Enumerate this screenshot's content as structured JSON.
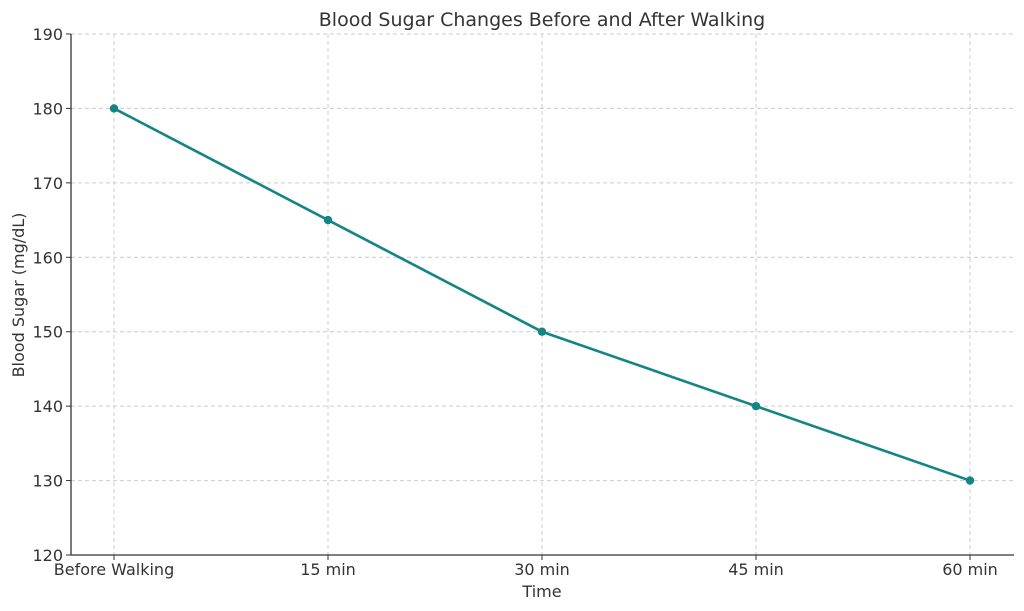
{
  "chart_data": {
    "type": "line",
    "title": "Blood Sugar Changes Before and After Walking",
    "xlabel": "Time",
    "ylabel": "Blood Sugar (mg/dL)",
    "categories": [
      "Before Walking",
      "15 min",
      "30 min",
      "45 min",
      "60 min"
    ],
    "series": [
      {
        "values": [
          180,
          165,
          150,
          140,
          130
        ]
      }
    ],
    "ylim": [
      120,
      190
    ],
    "yticks": [
      120,
      130,
      140,
      150,
      160,
      170,
      180,
      190
    ],
    "grid": true,
    "line_color": "#138585"
  }
}
